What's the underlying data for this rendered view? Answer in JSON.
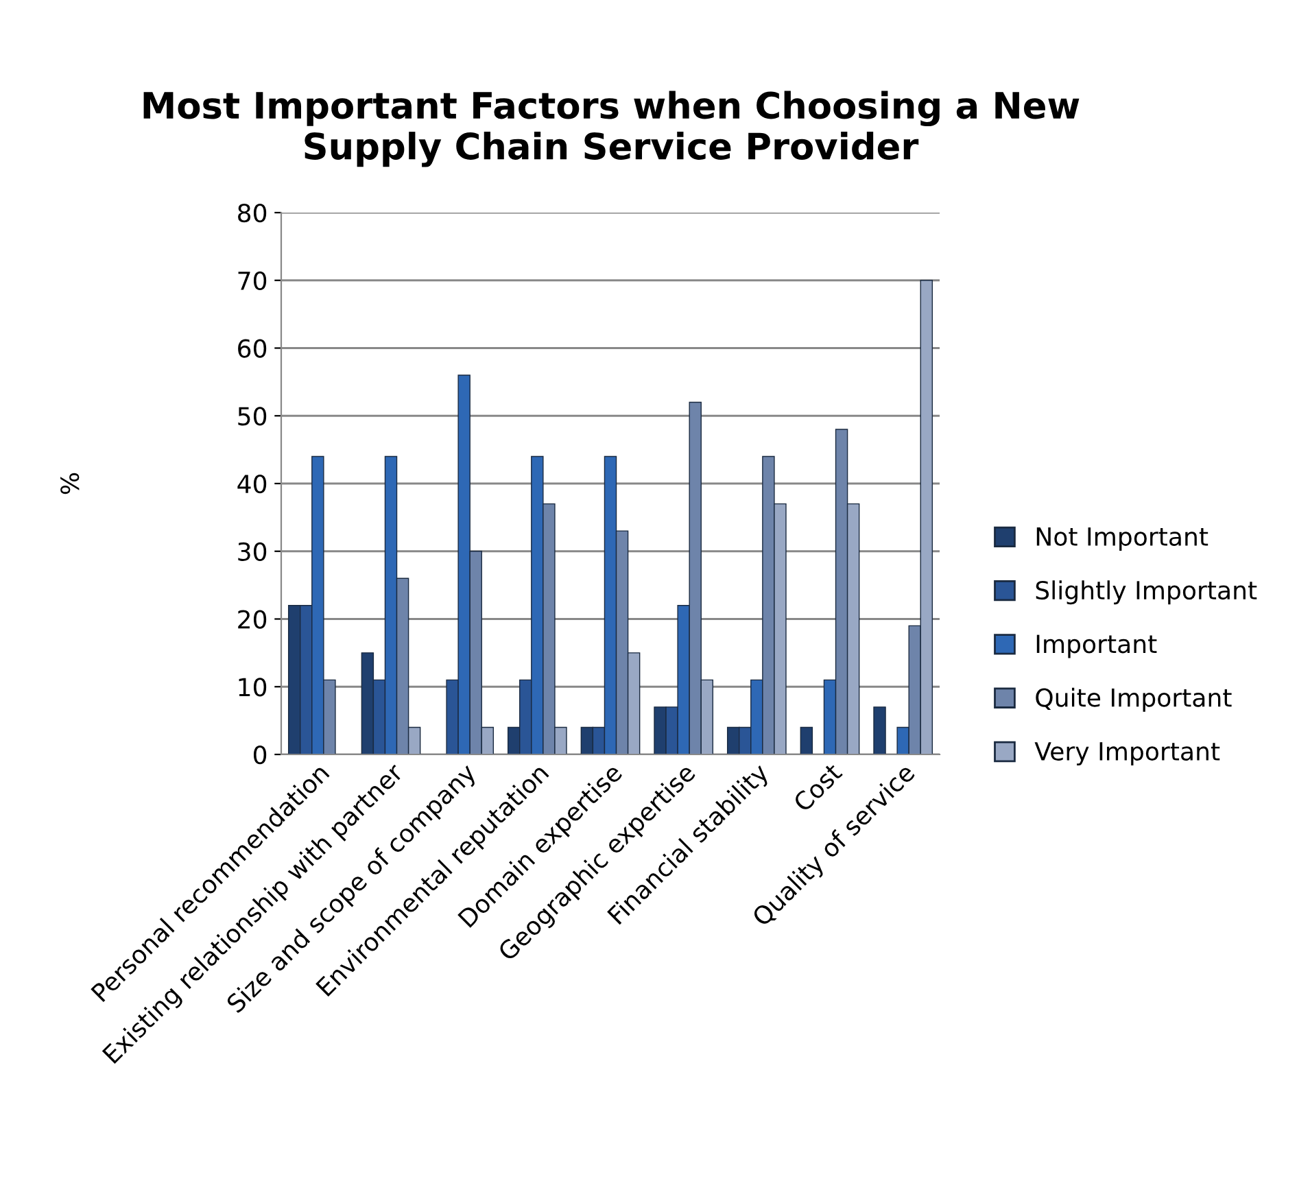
{
  "chart_data": {
    "type": "bar",
    "title": "Most Important Factors when Choosing a New\nSupply Chain Service Provider",
    "ylabel": "%",
    "categories": [
      "Personal recommendation",
      "Existing relationship with partner",
      "Size and scope of company",
      "Environmental reputation",
      "Domain expertise",
      "Geographic expertise",
      "Financial stability",
      "Cost",
      "Quality of service"
    ],
    "series": [
      {
        "name": "Not Important",
        "color": "#1f3f6e",
        "values": [
          22,
          15,
          0,
          4,
          4,
          7,
          4,
          4,
          7
        ]
      },
      {
        "name": "Slightly Important",
        "color": "#2a5596",
        "values": [
          22,
          11,
          11,
          11,
          4,
          7,
          4,
          0,
          0
        ]
      },
      {
        "name": "Important",
        "color": "#2e68b5",
        "values": [
          44,
          44,
          56,
          44,
          44,
          22,
          11,
          11,
          4
        ]
      },
      {
        "name": "Quite Important",
        "color": "#6e84aa",
        "values": [
          11,
          26,
          30,
          37,
          33,
          52,
          44,
          48,
          19
        ]
      },
      {
        "name": "Very Important",
        "color": "#99a8c4",
        "values": [
          0,
          4,
          4,
          4,
          15,
          11,
          37,
          37,
          70
        ]
      }
    ],
    "ylim": [
      0,
      80
    ],
    "yticks": [
      0,
      10,
      20,
      30,
      40,
      50,
      60,
      70,
      80
    ],
    "grid": "y",
    "legend": "right"
  }
}
